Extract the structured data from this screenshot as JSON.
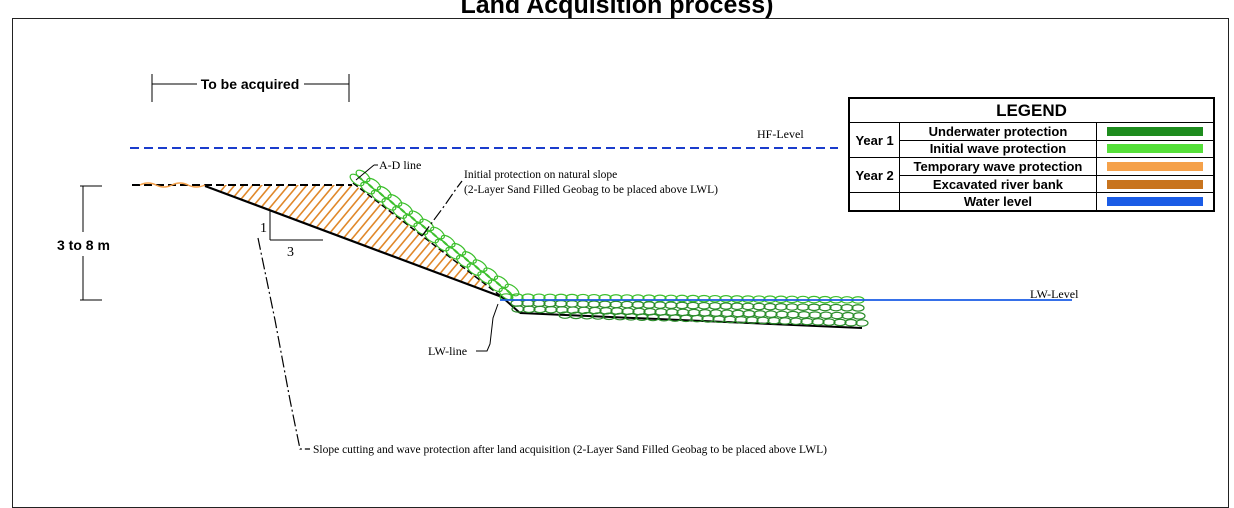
{
  "title": "Land Acquisition process)",
  "labels": {
    "to_be_acquired": "To be acquired",
    "height_range": "3 to 8 m",
    "hf_level": "HF-Level",
    "lw_level": "LW-Level",
    "ad_line": "A-D line",
    "lw_line": "LW-line",
    "slope_rise": "1",
    "slope_run": "3",
    "initial_protection_1": "Initial protection on natural slope",
    "initial_protection_2": "(2-Layer Sand Filled Geobag to be placed above LWL)",
    "slope_cutting": "Slope cutting and wave protection after land acquisition  (2-Layer Sand Filled Geobag to be placed above LWL)"
  },
  "legend": {
    "heading": "LEGEND",
    "year1": "Year 1",
    "year2": "Year 2",
    "items": [
      {
        "label": "Underwater protection",
        "color": "#1e8c1e"
      },
      {
        "label": "Initial wave protection",
        "color": "#55e03a"
      },
      {
        "label": "Temporary wave protection",
        "color": "#f5a14a"
      },
      {
        "label": "Excavated river bank",
        "color": "#c8741e"
      },
      {
        "label": "Water level",
        "color": "#1a5ce6"
      }
    ]
  },
  "colors": {
    "hf_line": "#1a3ccc",
    "lw_line": "#1a5ce6",
    "hatch": "#e0882a",
    "green_bag": "#3bbf2b",
    "dark_green_bag": "#2a8c2a"
  }
}
